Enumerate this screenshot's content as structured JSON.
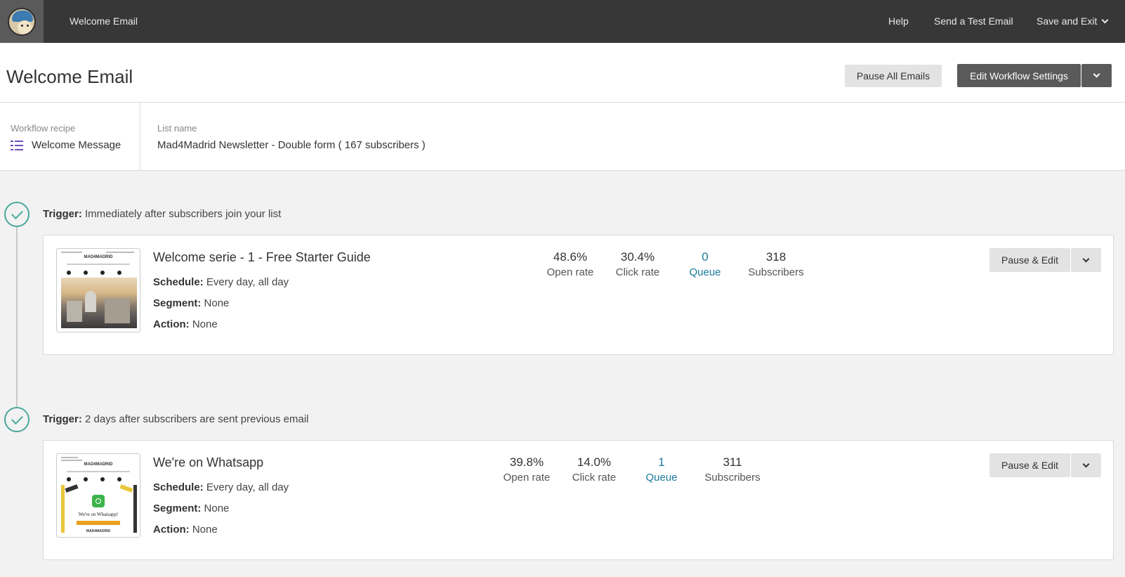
{
  "topbar": {
    "title": "Welcome Email",
    "help": "Help",
    "send_test": "Send a Test Email",
    "save_exit": "Save and Exit"
  },
  "header": {
    "title": "Welcome Email",
    "pause_all": "Pause All Emails",
    "edit_settings": "Edit Workflow Settings"
  },
  "info": {
    "recipe_label": "Workflow recipe",
    "recipe_value": "Welcome Message",
    "list_label": "List name",
    "list_value": "Mad4Madrid Newsletter - Double form ( 167 subscribers )"
  },
  "emails": [
    {
      "trigger_label": "Trigger:",
      "trigger_text": "Immediately after subscribers join your list",
      "title": "Welcome serie - 1 - Free Starter Guide",
      "schedule_label": "Schedule:",
      "schedule": "Every day, all day",
      "segment_label": "Segment:",
      "segment": "None",
      "action_label": "Action:",
      "action": "None",
      "thumb_brand": "MAD4MADRID",
      "stats": [
        {
          "value": "48.6%",
          "label": "Open rate"
        },
        {
          "value": "30.4%",
          "label": "Click rate"
        },
        {
          "value": "0",
          "label": "Queue"
        },
        {
          "value": "318",
          "label": "Subscribers"
        }
      ],
      "button": "Pause & Edit"
    },
    {
      "trigger_label": "Trigger:",
      "trigger_text": "2 days after subscribers are sent previous email",
      "title": "We're on Whatsapp",
      "schedule_label": "Schedule:",
      "schedule": "Every day, all day",
      "segment_label": "Segment:",
      "segment": "None",
      "action_label": "Action:",
      "action": "None",
      "thumb_brand": "MAD4MADRID",
      "thumb_text": "We're on Whatsapp!",
      "stats": [
        {
          "value": "39.8%",
          "label": "Open rate"
        },
        {
          "value": "14.0%",
          "label": "Click rate"
        },
        {
          "value": "1",
          "label": "Queue"
        },
        {
          "value": "311",
          "label": "Subscribers"
        }
      ],
      "button": "Pause & Edit"
    }
  ],
  "colors": {
    "topbar": "#373737",
    "accent_teal": "#4aa89a",
    "link_blue": "#1a7b9e",
    "recipe_icon": "#6b4fbb"
  }
}
